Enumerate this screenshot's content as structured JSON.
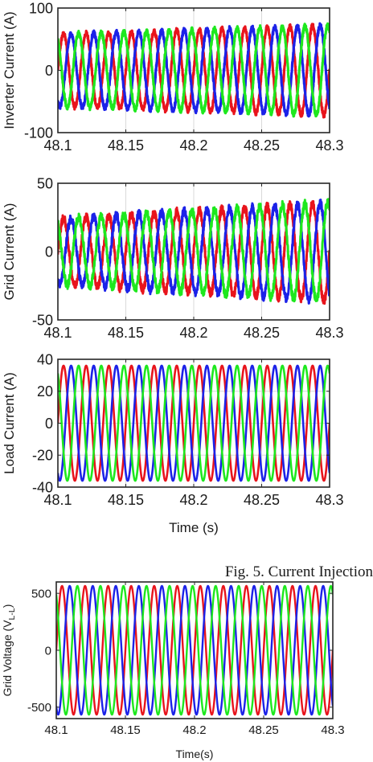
{
  "chart_data": [
    {
      "type": "line",
      "ylabel": "Inverter Current (A)",
      "xlabel": "",
      "xlim": [
        48.1,
        48.3
      ],
      "ylim": [
        -100,
        100
      ],
      "xticks": [
        "48.1",
        "48.15",
        "48.2",
        "48.25",
        "48.3"
      ],
      "yticks": [
        "100",
        "0",
        "-100"
      ],
      "grid": true,
      "freq_hz": 60,
      "amplitude_start": 58,
      "amplitude_end": 72,
      "noise": 4,
      "series": [
        {
          "phase_deg": 0,
          "color": "#e8141c"
        },
        {
          "phase_deg": -120,
          "color": "#1c22e8"
        },
        {
          "phase_deg": 120,
          "color": "#1ee81e"
        }
      ]
    },
    {
      "type": "line",
      "ylabel": "Grid Current (A)",
      "xlabel": "",
      "xlim": [
        48.1,
        48.3
      ],
      "ylim": [
        -50,
        50
      ],
      "xticks": [
        "48.1",
        "48.15",
        "48.2",
        "48.25",
        "48.3"
      ],
      "yticks": [
        "50",
        "0",
        "-50"
      ],
      "grid": true,
      "freq_hz": 60,
      "amplitude_start": 24,
      "amplitude_end": 36,
      "noise": 3,
      "series": [
        {
          "phase_deg": 0,
          "color": "#e8141c"
        },
        {
          "phase_deg": -120,
          "color": "#1c22e8"
        },
        {
          "phase_deg": 120,
          "color": "#1ee81e"
        }
      ]
    },
    {
      "type": "line",
      "ylabel": "Load Current (A)",
      "xlabel": "Time (s)",
      "xlim": [
        48.1,
        48.3
      ],
      "ylim": [
        -40,
        40
      ],
      "xticks": [
        "48.1",
        "48.15",
        "48.2",
        "48.25",
        "48.3"
      ],
      "yticks": [
        "40",
        "20",
        "0",
        "-20",
        "-40"
      ],
      "grid": true,
      "freq_hz": 60,
      "amplitude_start": 36,
      "amplitude_end": 36,
      "noise": 0,
      "series": [
        {
          "phase_deg": 0,
          "color": "#e8141c"
        },
        {
          "phase_deg": -120,
          "color": "#1c22e8"
        },
        {
          "phase_deg": 120,
          "color": "#1ee81e"
        }
      ]
    },
    {
      "type": "line",
      "ylabel": "Grid Voltage (V",
      "ylabel_sub": "L-L",
      "ylabel_close": ")",
      "xlabel": "Time(s)",
      "xlim": [
        48.1,
        48.3
      ],
      "ylim": [
        -600,
        600
      ],
      "xticks": [
        "48.1",
        "48.15",
        "48.2",
        "48.25",
        "48.3"
      ],
      "yticks": [
        "500",
        "0",
        "-500"
      ],
      "grid": false,
      "freq_hz": 60,
      "amplitude_start": 565,
      "amplitude_end": 565,
      "noise": 0,
      "series": [
        {
          "phase_deg": 0,
          "color": "#e8141c"
        },
        {
          "phase_deg": -120,
          "color": "#1c22e8"
        },
        {
          "phase_deg": 120,
          "color": "#1ee81e"
        }
      ]
    }
  ],
  "caption": "Fig. 5.   Current Injection"
}
